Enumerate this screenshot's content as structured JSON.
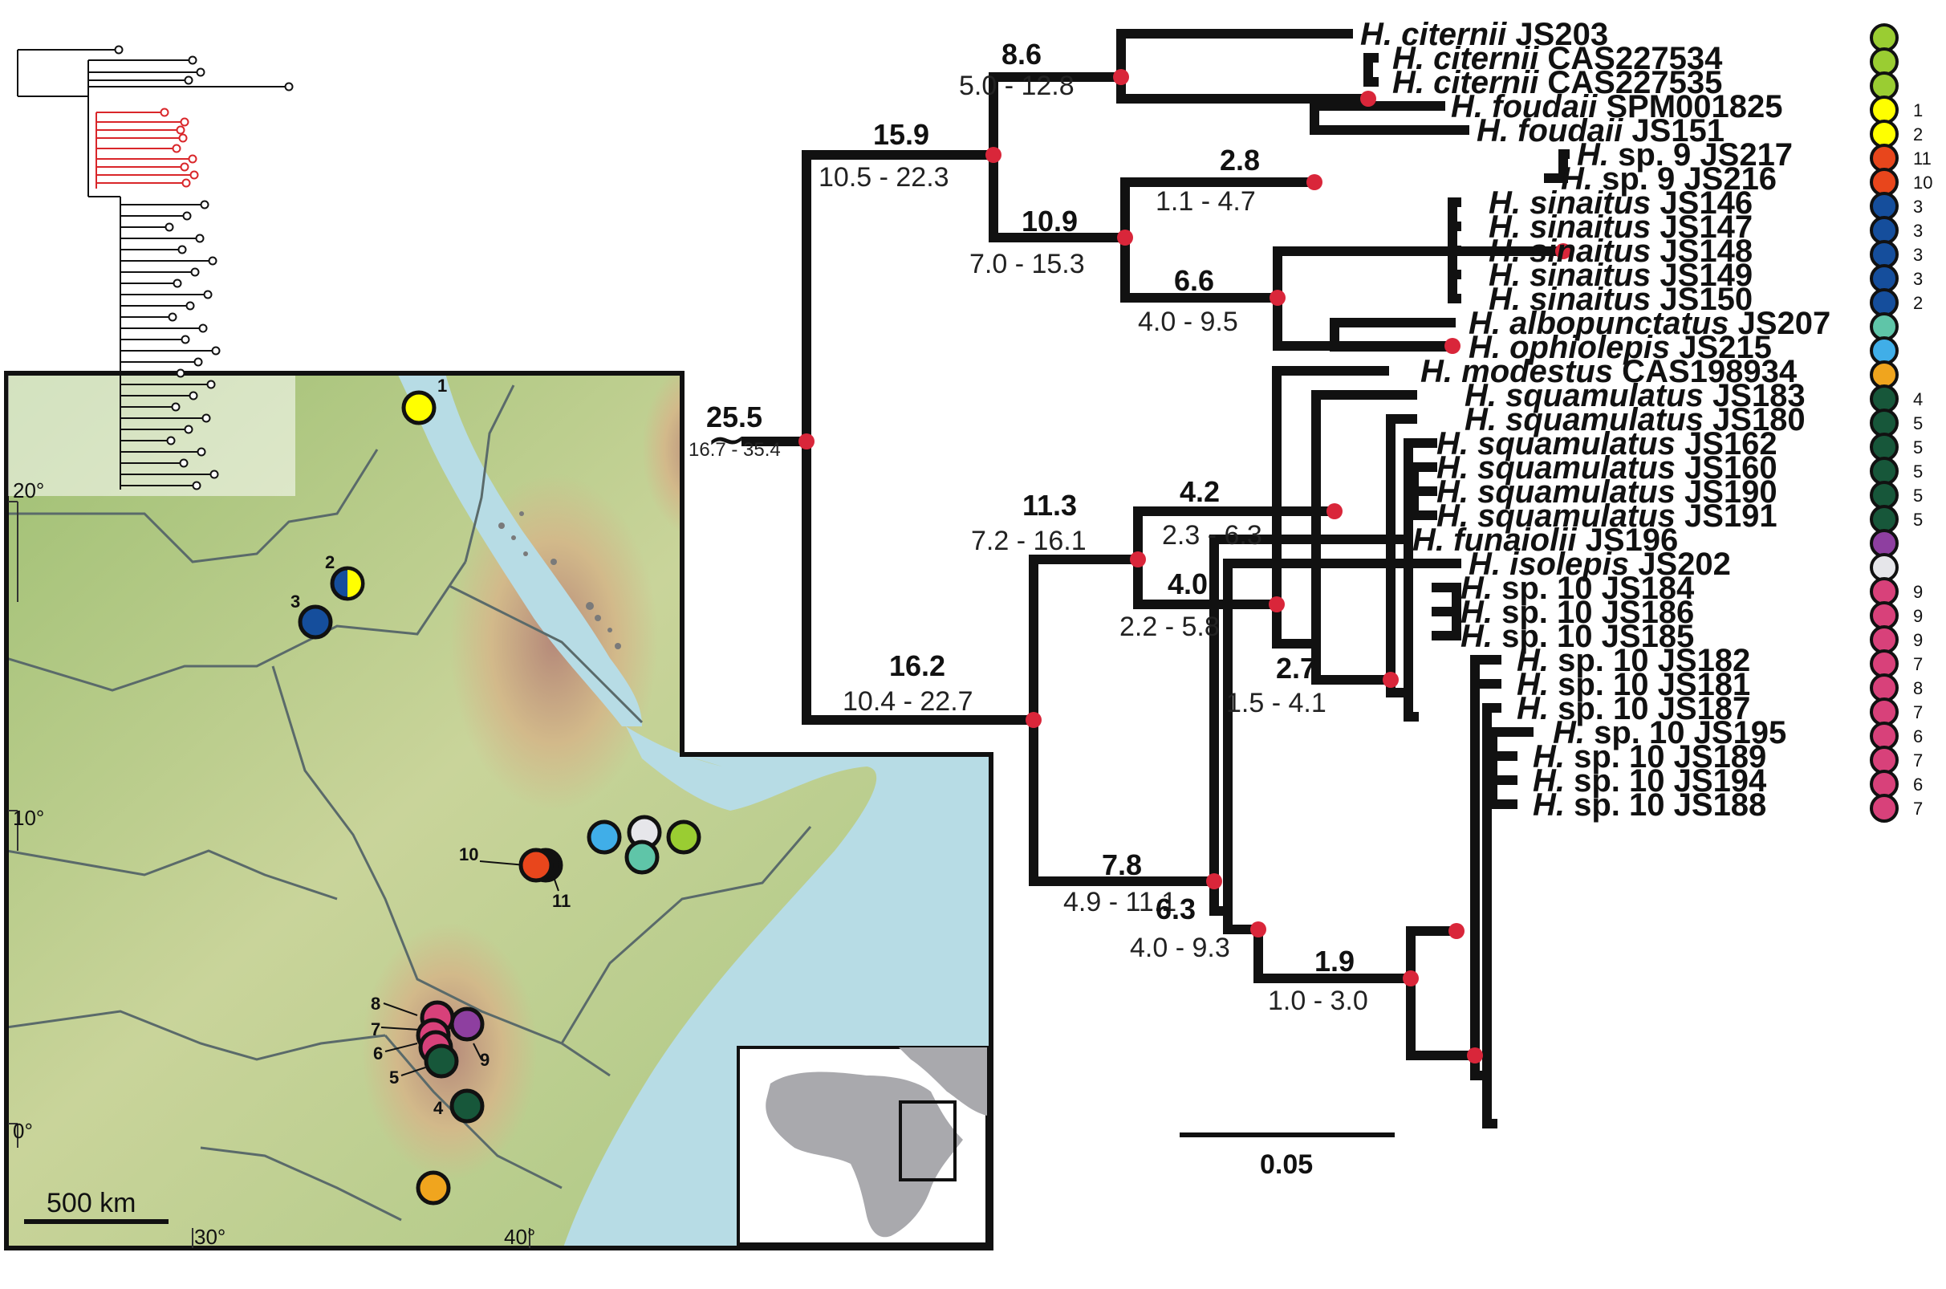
{
  "colors": {
    "green_light": "#9acd32",
    "yellow": "#ffff00",
    "orange_red": "#e8461c",
    "dark_blue": "#154e9c",
    "teal": "#5fc5a8",
    "sky_blue": "#40aee8",
    "amber": "#f0a51e",
    "dark_green": "#17573a",
    "purple": "#8e3fa0",
    "light_gray": "#e6e6ea",
    "magenta": "#d8417a",
    "node_red": "#d9263a",
    "sea": "#b7dce5",
    "land": "#b9cf8e"
  },
  "tree": {
    "scale_bar_label": "0.05",
    "root_symbol": "~",
    "tips": [
      {
        "genus": "H.",
        "label": "citernii JS203",
        "italic_epithet": true,
        "color": "green_light",
        "badge": ""
      },
      {
        "genus": "H.",
        "label": "citernii CAS227534",
        "italic_epithet": true,
        "color": "green_light",
        "badge": ""
      },
      {
        "genus": "H.",
        "label": "citernii CAS227535",
        "italic_epithet": true,
        "color": "green_light",
        "badge": ""
      },
      {
        "genus": "H.",
        "label": "foudaii SPM001825",
        "italic_epithet": true,
        "color": "yellow",
        "badge": "1"
      },
      {
        "genus": "H.",
        "label": "foudaii JS151",
        "italic_epithet": true,
        "color": "yellow",
        "badge": "2"
      },
      {
        "genus": "H.",
        "label": "sp. 9 JS217",
        "italic_epithet": false,
        "color": "orange_red",
        "badge": "11"
      },
      {
        "genus": "H.",
        "label": "sp. 9 JS216",
        "italic_epithet": false,
        "color": "orange_red",
        "badge": "10"
      },
      {
        "genus": "H.",
        "label": "sinaitus JS146",
        "italic_epithet": true,
        "color": "dark_blue",
        "badge": "3"
      },
      {
        "genus": "H.",
        "label": "sinaitus JS147",
        "italic_epithet": true,
        "color": "dark_blue",
        "badge": "3"
      },
      {
        "genus": "H.",
        "label": "sinaitus JS148",
        "italic_epithet": true,
        "color": "dark_blue",
        "badge": "3"
      },
      {
        "genus": "H.",
        "label": "sinaitus JS149",
        "italic_epithet": true,
        "color": "dark_blue",
        "badge": "3"
      },
      {
        "genus": "H.",
        "label": "sinaitus JS150",
        "italic_epithet": true,
        "color": "dark_blue",
        "badge": "2"
      },
      {
        "genus": "H.",
        "label": "albopunctatus JS207",
        "italic_epithet": true,
        "color": "teal",
        "badge": ""
      },
      {
        "genus": "H.",
        "label": "ophiolepis JS215",
        "italic_epithet": true,
        "color": "sky_blue",
        "badge": ""
      },
      {
        "genus": "H.",
        "label": "modestus CAS198934",
        "italic_epithet": true,
        "color": "amber",
        "badge": ""
      },
      {
        "genus": "H.",
        "label": "squamulatus JS183",
        "italic_epithet": true,
        "color": "dark_green",
        "badge": "4"
      },
      {
        "genus": "H.",
        "label": "squamulatus JS180",
        "italic_epithet": true,
        "color": "dark_green",
        "badge": "5"
      },
      {
        "genus": "H.",
        "label": "squamulatus JS162",
        "italic_epithet": true,
        "color": "dark_green",
        "badge": "5"
      },
      {
        "genus": "H.",
        "label": "squamulatus JS160",
        "italic_epithet": true,
        "color": "dark_green",
        "badge": "5"
      },
      {
        "genus": "H.",
        "label": "squamulatus JS190",
        "italic_epithet": true,
        "color": "dark_green",
        "badge": "5"
      },
      {
        "genus": "H.",
        "label": "squamulatus JS191",
        "italic_epithet": true,
        "color": "dark_green",
        "badge": "5"
      },
      {
        "genus": "H.",
        "label": "funaiolii JS196",
        "italic_epithet": true,
        "color": "purple",
        "badge": ""
      },
      {
        "genus": "H.",
        "label": "isolepis JS202",
        "italic_epithet": true,
        "color": "light_gray",
        "badge": ""
      },
      {
        "genus": "H.",
        "label": "sp. 10 JS184",
        "italic_epithet": false,
        "color": "magenta",
        "badge": "9"
      },
      {
        "genus": "H.",
        "label": "sp. 10 JS186",
        "italic_epithet": false,
        "color": "magenta",
        "badge": "9"
      },
      {
        "genus": "H.",
        "label": "sp. 10 JS185",
        "italic_epithet": false,
        "color": "magenta",
        "badge": "9"
      },
      {
        "genus": "H.",
        "label": "sp. 10 JS182",
        "italic_epithet": false,
        "color": "magenta",
        "badge": "7"
      },
      {
        "genus": "H.",
        "label": "sp. 10 JS181",
        "italic_epithet": false,
        "color": "magenta",
        "badge": "8"
      },
      {
        "genus": "H.",
        "label": "sp. 10 JS187",
        "italic_epithet": false,
        "color": "magenta",
        "badge": "7"
      },
      {
        "genus": "H.",
        "label": "sp. 10 JS195",
        "italic_epithet": false,
        "color": "magenta",
        "badge": "6"
      },
      {
        "genus": "H.",
        "label": "sp. 10 JS189",
        "italic_epithet": false,
        "color": "magenta",
        "badge": "7"
      },
      {
        "genus": "H.",
        "label": "sp. 10 JS194",
        "italic_epithet": false,
        "color": "magenta",
        "badge": "6"
      },
      {
        "genus": "H.",
        "label": "sp. 10 JS188",
        "italic_epithet": false,
        "color": "magenta",
        "badge": "7"
      }
    ],
    "node_ages": [
      {
        "id": "root",
        "age": "25.5",
        "hpd": "16.7 - 35.4"
      },
      {
        "id": "n_a",
        "age": "15.9",
        "hpd": "10.5 - 22.3"
      },
      {
        "id": "n_citernii",
        "age": "8.6",
        "hpd": "5.0 - 12.8"
      },
      {
        "id": "n_b",
        "age": "10.9",
        "hpd": "7.0 - 15.3"
      },
      {
        "id": "n_foudaii",
        "age": "2.8",
        "hpd": "1.1 - 4.7"
      },
      {
        "id": "n_sinai",
        "age": "6.6",
        "hpd": "4.0 - 9.5"
      },
      {
        "id": "n_c",
        "age": "16.2",
        "hpd": "10.4 - 22.7"
      },
      {
        "id": "n_d",
        "age": "11.3",
        "hpd": "7.2 - 16.1"
      },
      {
        "id": "n_albo",
        "age": "4.2",
        "hpd": "2.3 - 6.3"
      },
      {
        "id": "n_modestus",
        "age": "4.0",
        "hpd": "2.2 - 5.8"
      },
      {
        "id": "n_squam",
        "age": "2.7",
        "hpd": "1.5 - 4.1"
      },
      {
        "id": "n_e",
        "age": "7.8",
        "hpd": "4.9 - 11.1"
      },
      {
        "id": "n_f",
        "age": "6.3",
        "hpd": "4.0 - 9.3"
      },
      {
        "id": "n_sp10",
        "age": "1.9",
        "hpd": "1.0 - 3.0"
      }
    ]
  },
  "map": {
    "scale_label": "500 km",
    "latitudes": [
      "20°",
      "10°",
      "0°"
    ],
    "longitudes": [
      "30°",
      "40°"
    ],
    "sample_numbers": [
      "1",
      "2",
      "3",
      "4",
      "5",
      "6",
      "7",
      "8",
      "9",
      "10",
      "11"
    ],
    "points": [
      {
        "num": "1",
        "color": "yellow"
      },
      {
        "num": "2",
        "color": "dark_blue"
      },
      {
        "num": "3",
        "color": "dark_blue"
      },
      {
        "num": "4",
        "color": "dark_green"
      },
      {
        "num": "5",
        "color": "dark_green"
      },
      {
        "num": "6",
        "color": "magenta"
      },
      {
        "num": "7",
        "color": "magenta"
      },
      {
        "num": "8",
        "color": "magenta"
      },
      {
        "num": "9",
        "color": "purple"
      },
      {
        "num": "10",
        "color": "orange_red"
      },
      {
        "num": "11",
        "color": "orange_red"
      },
      {
        "num": "",
        "color": "sky_blue"
      },
      {
        "num": "",
        "color": "light_gray"
      },
      {
        "num": "",
        "color": "teal"
      },
      {
        "num": "",
        "color": "green_light"
      },
      {
        "num": "",
        "color": "amber"
      }
    ]
  }
}
